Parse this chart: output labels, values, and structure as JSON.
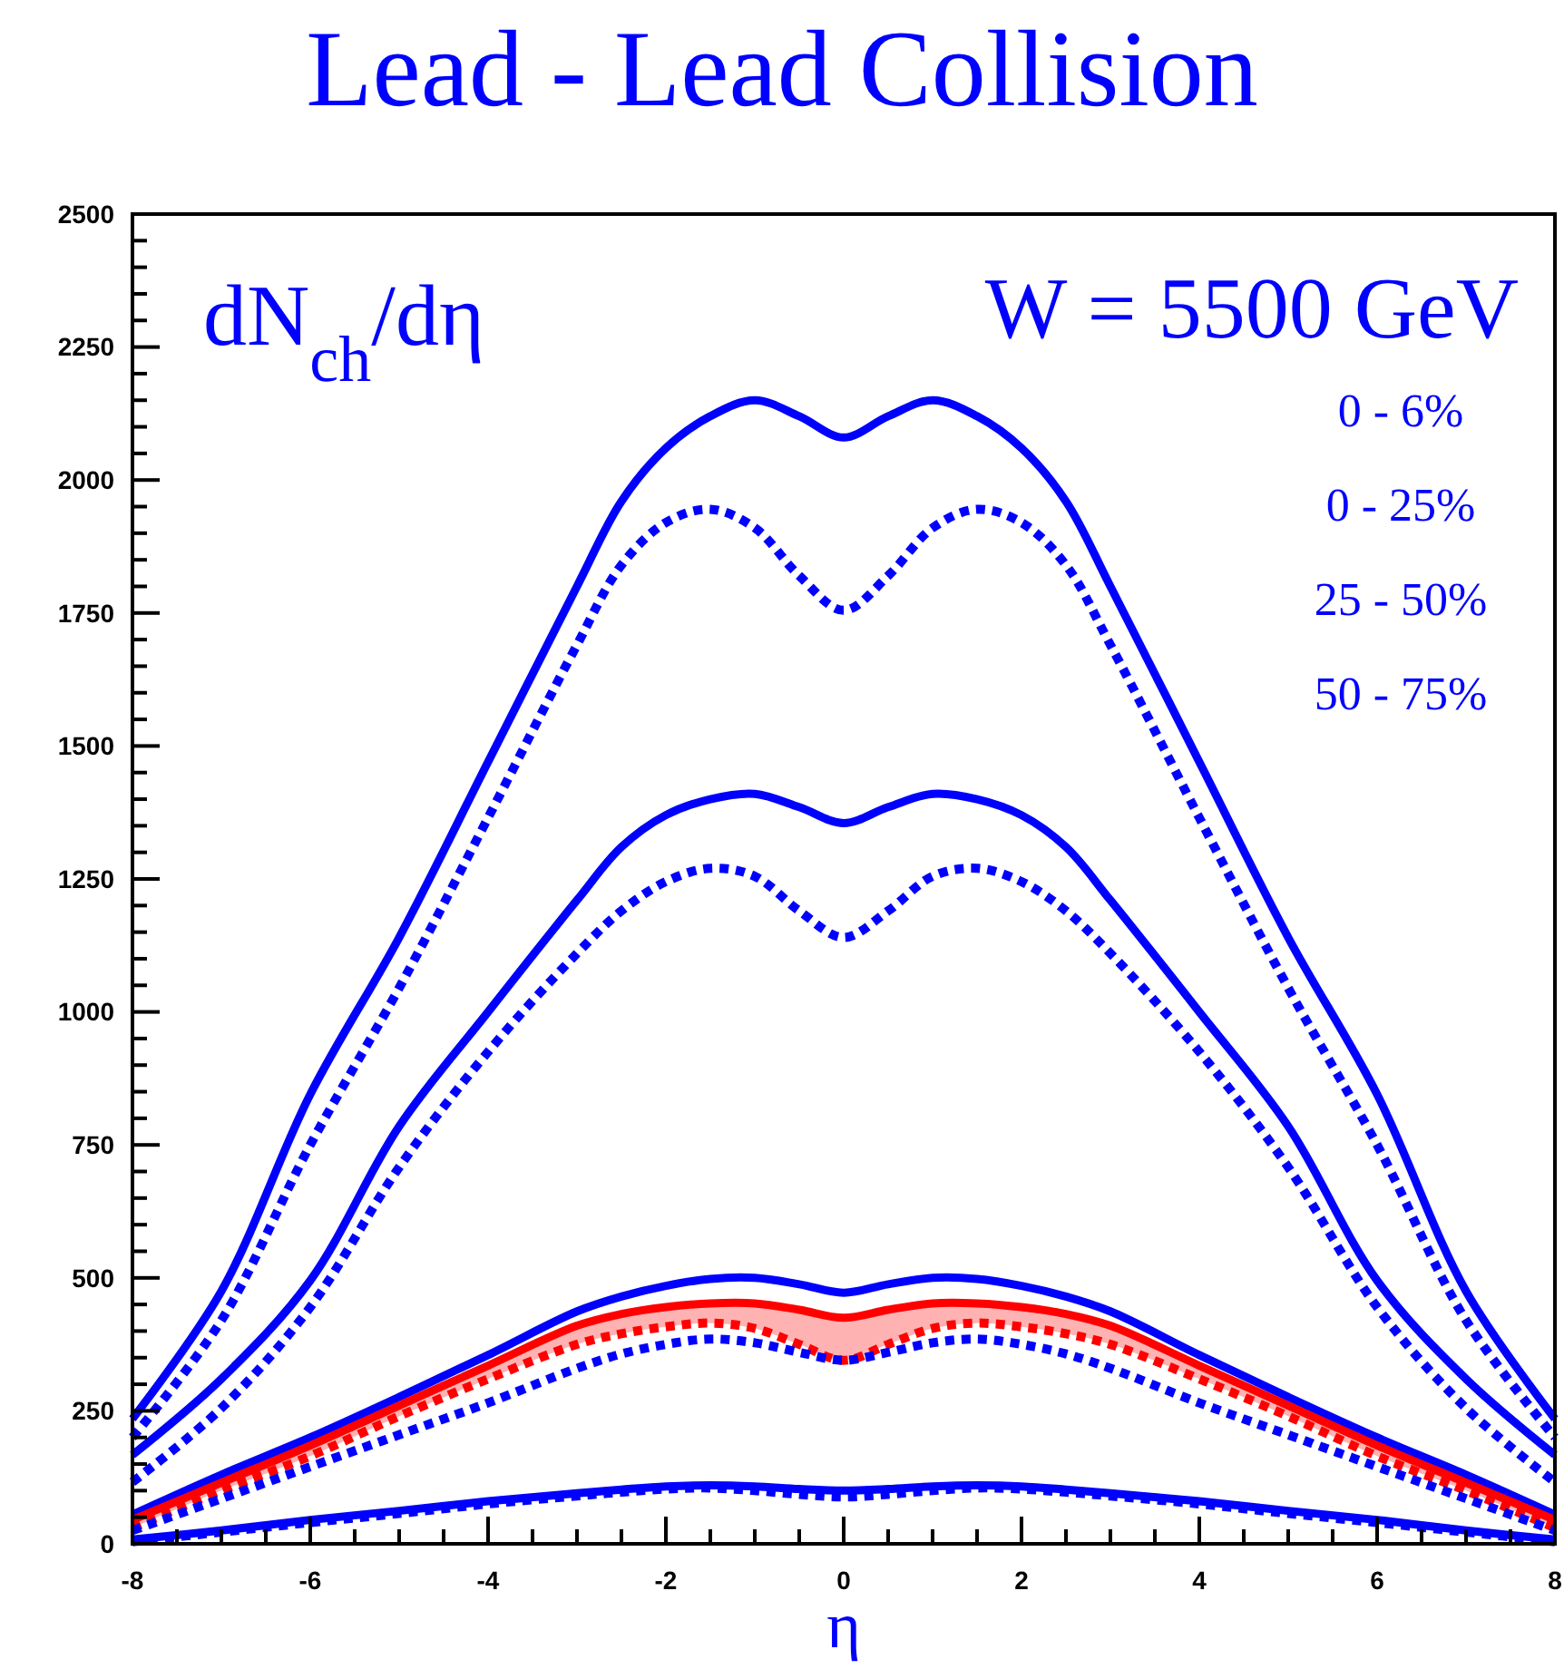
{
  "chart_data": {
    "type": "line",
    "title": "Lead - Lead Collision",
    "xlabel": "η",
    "ylabel": "dN$_{ch}$/dη",
    "annotations": [
      "W = 5500 GeV",
      "0 - 6%",
      "0 - 25%",
      "25 - 50%",
      "50 - 75%"
    ],
    "x": [
      -8,
      -7,
      -6,
      -5,
      -4,
      -3,
      -2.5,
      -2,
      -1.5,
      -1,
      -0.5,
      0,
      0.5,
      1,
      1.5,
      2,
      2.5,
      3,
      4,
      5,
      6,
      7,
      8
    ],
    "series": [
      {
        "color": "#0000ff",
        "line_style": "solid",
        "values": [
          235,
          475,
          845,
          1140,
          1470,
          1800,
          1960,
          2060,
          2120,
          2150,
          2120,
          2080,
          2120,
          2150,
          2120,
          2060,
          1960,
          1800,
          1470,
          1140,
          845,
          475,
          235
        ]
      },
      {
        "color": "#0000ff",
        "line_style": "dotted",
        "values": [
          200,
          420,
          750,
          1045,
          1365,
          1690,
          1840,
          1920,
          1945,
          1910,
          1820,
          1755,
          1820,
          1910,
          1945,
          1920,
          1840,
          1690,
          1365,
          1045,
          750,
          420,
          200
        ]
      },
      {
        "color": "#0000ff",
        "line_style": "solid",
        "values": [
          167,
          310,
          495,
          785,
          1000,
          1210,
          1310,
          1370,
          1400,
          1410,
          1385,
          1355,
          1385,
          1410,
          1400,
          1370,
          1310,
          1210,
          1000,
          785,
          495,
          310,
          167
        ]
      },
      {
        "color": "#0000ff",
        "line_style": "dotted",
        "values": [
          116,
          255,
          445,
          708,
          925,
          1110,
          1190,
          1245,
          1270,
          1255,
          1190,
          1140,
          1190,
          1255,
          1270,
          1245,
          1190,
          1110,
          925,
          708,
          445,
          255,
          116
        ]
      },
      {
        "color": "#0000ff",
        "line_style": "solid",
        "values": [
          55,
          130,
          200,
          276,
          355,
          437,
          465,
          485,
          498,
          500,
          488,
          472,
          488,
          500,
          498,
          485,
          465,
          437,
          355,
          276,
          200,
          130,
          55
        ]
      },
      {
        "color": "#ff0000",
        "line_style": "solid",
        "values": [
          45,
          115,
          185,
          260,
          335,
          410,
          432,
          445,
          452,
          452,
          440,
          425,
          440,
          452,
          452,
          445,
          432,
          410,
          335,
          260,
          185,
          115,
          45
        ],
        "lower": [
          30,
          100,
          165,
          240,
          310,
          375,
          395,
          408,
          415,
          405,
          375,
          345,
          375,
          405,
          415,
          408,
          395,
          375,
          310,
          240,
          165,
          100,
          30
        ],
        "upper": [
          45,
          115,
          185,
          260,
          335,
          410,
          432,
          445,
          452,
          452,
          440,
          425,
          440,
          452,
          452,
          445,
          432,
          410,
          335,
          260,
          185,
          115,
          45
        ]
      },
      {
        "color": "#ff0000",
        "line_style": "dotted",
        "values": [
          30,
          100,
          165,
          240,
          310,
          375,
          395,
          408,
          415,
          405,
          375,
          345,
          375,
          405,
          415,
          408,
          395,
          375,
          310,
          240,
          165,
          100,
          30
        ]
      },
      {
        "color": "#0000ff",
        "line_style": "dotted",
        "values": [
          25,
          85,
          145,
          205,
          265,
          330,
          357,
          375,
          385,
          378,
          360,
          345,
          360,
          378,
          385,
          375,
          357,
          330,
          265,
          205,
          145,
          85,
          25
        ]
      },
      {
        "color": "#0000ff",
        "line_style": "solid",
        "values": [
          8,
          25,
          45,
          62,
          80,
          95,
          102,
          108,
          110,
          108,
          103,
          100,
          103,
          108,
          110,
          108,
          102,
          95,
          80,
          62,
          45,
          25,
          8
        ]
      },
      {
        "color": "#0000ff",
        "line_style": "dotted",
        "values": [
          4,
          22,
          40,
          57,
          75,
          90,
          97,
          103,
          105,
          100,
          93,
          88,
          93,
          100,
          105,
          103,
          97,
          90,
          75,
          57,
          40,
          22,
          4
        ]
      }
    ],
    "xlim": [
      -8,
      8
    ],
    "xticks": [
      -8,
      {
        "value": -7.5,
        "label": null
      },
      {
        "value": -7,
        "label": null
      },
      {
        "value": -6.5,
        "label": null
      },
      -6,
      {
        "value": -5.5,
        "label": null
      },
      {
        "value": -5,
        "label": null
      },
      {
        "value": -4.5,
        "label": null
      },
      -4,
      {
        "value": -3.5,
        "label": null
      },
      {
        "value": -3,
        "label": null
      },
      {
        "value": -2.5,
        "label": null
      },
      -2,
      {
        "value": -1.5,
        "label": null
      },
      {
        "value": -1,
        "label": null
      },
      {
        "value": -0.5,
        "label": null
      },
      0,
      {
        "value": 0.5,
        "label": null
      },
      {
        "value": 1,
        "label": null
      },
      {
        "value": 1.5,
        "label": null
      },
      2,
      {
        "value": 2.5,
        "label": null
      },
      {
        "value": 3,
        "label": null
      },
      {
        "value": 3.5,
        "label": null
      },
      4,
      {
        "value": 4.5,
        "label": null
      },
      {
        "value": 5,
        "label": null
      },
      {
        "value": 5.5,
        "label": null
      },
      6,
      {
        "value": 6.5,
        "label": null
      },
      {
        "value": 7,
        "label": null
      },
      {
        "value": 7.5,
        "label": null
      },
      8
    ],
    "ylim": [
      0,
      2500
    ],
    "yticks": [
      0,
      {
        "value": 50,
        "label": null
      },
      {
        "value": 100,
        "label": null
      },
      {
        "value": 150,
        "label": null
      },
      {
        "value": 200,
        "label": null
      },
      250,
      {
        "value": 300,
        "label": null
      },
      {
        "value": 350,
        "label": null
      },
      {
        "value": 400,
        "label": null
      },
      {
        "value": 450,
        "label": null
      },
      500,
      {
        "value": 550,
        "label": null
      },
      {
        "value": 600,
        "label": null
      },
      {
        "value": 650,
        "label": null
      },
      {
        "value": 700,
        "label": null
      },
      750,
      {
        "value": 800,
        "label": null
      },
      {
        "value": 850,
        "label": null
      },
      {
        "value": 900,
        "label": null
      },
      {
        "value": 950,
        "label": null
      },
      1000,
      {
        "value": 1050,
        "label": null
      },
      {
        "value": 1100,
        "label": null
      },
      {
        "value": 1150,
        "label": null
      },
      {
        "value": 1200,
        "label": null
      },
      1250,
      {
        "value": 1300,
        "label": null
      },
      {
        "value": 1350,
        "label": null
      },
      {
        "value": 1400,
        "label": null
      },
      {
        "value": 1450,
        "label": null
      },
      1500,
      {
        "value": 1550,
        "label": null
      },
      {
        "value": 1600,
        "label": null
      },
      {
        "value": 1650,
        "label": null
      },
      {
        "value": 1700,
        "label": null
      },
      1750,
      {
        "value": 1800,
        "label": null
      },
      {
        "value": 1850,
        "label": null
      },
      {
        "value": 1900,
        "label": null
      },
      {
        "value": 1950,
        "label": null
      },
      2000,
      {
        "value": 2050,
        "label": null
      },
      {
        "value": 2100,
        "label": null
      },
      {
        "value": 2150,
        "label": null
      },
      {
        "value": 2200,
        "label": null
      },
      2250,
      {
        "value": 2300,
        "label": null
      },
      {
        "value": 2350,
        "label": null
      },
      {
        "value": 2400,
        "label": null
      },
      {
        "value": 2450,
        "label": null
      },
      2500
    ],
    "grid": false
  }
}
